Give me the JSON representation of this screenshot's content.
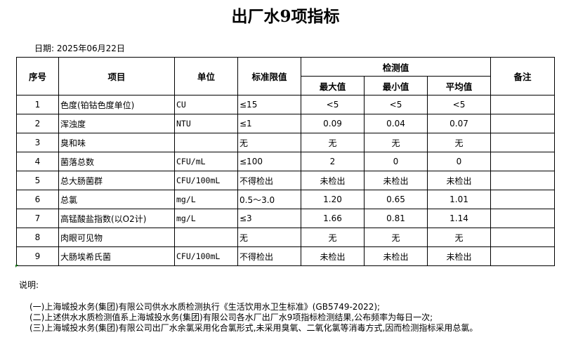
{
  "title": "出厂水9项指标",
  "date": "日期: 2025年06月22日",
  "table": {
    "headers": {
      "no": "序号",
      "item": "项目",
      "unit": "单位",
      "limit": "标准限值",
      "detect": "检测值",
      "max": "最大值",
      "min": "最小值",
      "avg": "平均值",
      "remark": "备注"
    },
    "rows": [
      {
        "no": "1",
        "item": "色度(铂钴色度单位)",
        "unit": "CU",
        "limit": "≤15",
        "max": "<5",
        "min": "<5",
        "avg": "<5",
        "remark": ""
      },
      {
        "no": "2",
        "item": "浑浊度",
        "unit": "NTU",
        "limit": "≤1",
        "max": "0.09",
        "min": "0.04",
        "avg": "0.07",
        "remark": ""
      },
      {
        "no": "3",
        "item": "臭和味",
        "unit": "",
        "limit": "无",
        "max": "无",
        "min": "无",
        "avg": "无",
        "remark": ""
      },
      {
        "no": "4",
        "item": "菌落总数",
        "unit": "CFU/mL",
        "limit": "≤100",
        "max": "2",
        "min": "0",
        "avg": "0",
        "remark": ""
      },
      {
        "no": "5",
        "item": "总大肠菌群",
        "unit": "CFU/100mL",
        "limit": "不得检出",
        "max": "未检出",
        "min": "未检出",
        "avg": "未检出",
        "remark": ""
      },
      {
        "no": "6",
        "item": "总氯",
        "unit": "mg/L",
        "limit": "0.5～3.0",
        "max": "1.20",
        "min": "0.65",
        "avg": "1.01",
        "remark": ""
      },
      {
        "no": "7",
        "item": "高锰酸盐指数(以O2计)",
        "unit": "mg/L",
        "limit": "≤3",
        "max": "1.66",
        "min": "0.81",
        "avg": "1.14",
        "remark": ""
      },
      {
        "no": "8",
        "item": "肉眼可见物",
        "unit": "",
        "limit": "无",
        "max": "无",
        "min": "无",
        "avg": "无",
        "remark": ""
      },
      {
        "no": "9",
        "item": "大肠埃希氏菌",
        "unit": "CFU/100mL",
        "limit": "不得检出",
        "max": "未检出",
        "min": "未检出",
        "avg": "未检出",
        "remark": ""
      }
    ]
  },
  "notes": {
    "label": "说明:",
    "lines": [
      "(一)上海城投水务(集团)有限公司供水水质检测执行《生活饮用水卫生标准》(GB5749-2022);",
      "(二)上述供水水质检测值系上海城投水务(集团)有限公司各水厂出厂水9项指标检测结果,公布频率为每日一次;",
      "(三)上海城投水务(集团)有限公司出厂水余氯采用化合氯形式,未采用臭氧、二氧化氯等消毒方式,因而检测指标采用总氯。"
    ]
  }
}
